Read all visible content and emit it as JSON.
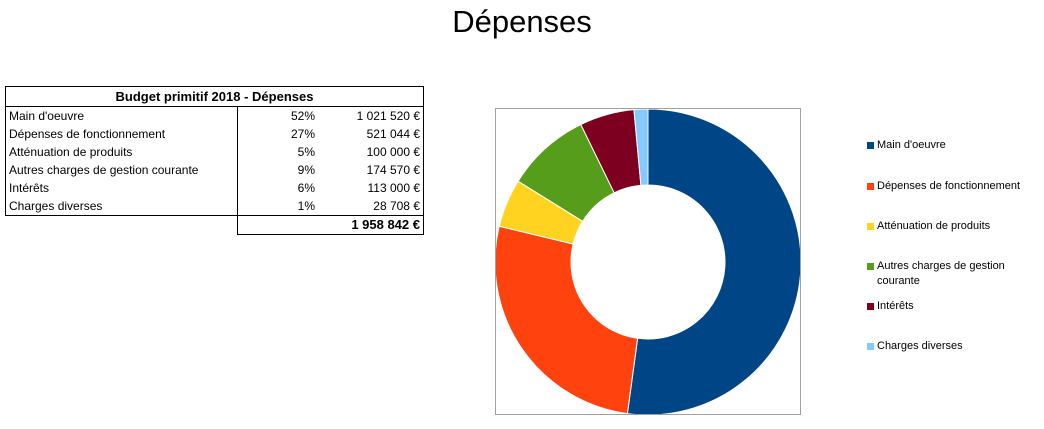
{
  "page": {
    "title": "Dépenses"
  },
  "table": {
    "header": "Budget primitif 2018 - Dépenses",
    "rows": [
      {
        "label": "Main d'oeuvre",
        "pct": "52%",
        "amount": "1 021 520 €"
      },
      {
        "label": "Dépenses de fonctionnement",
        "pct": "27%",
        "amount": "521 044 €"
      },
      {
        "label": "Atténuation de produits",
        "pct": "5%",
        "amount": "100 000 €"
      },
      {
        "label": "Autres charges de gestion courante",
        "pct": "9%",
        "amount": "174 570 €"
      },
      {
        "label": "Intérêts",
        "pct": "6%",
        "amount": "113 000 €"
      },
      {
        "label": "Charges diverses",
        "pct": "1%",
        "amount": "28 708 €"
      }
    ],
    "total": "1 958 842 €"
  },
  "chart_data": {
    "type": "pie",
    "variant": "donut",
    "title": "Dépenses",
    "categories": [
      "Main d'oeuvre",
      "Dépenses de fonctionnement",
      "Atténuation de produits",
      "Autres charges de gestion courante",
      "Intérêts",
      "Charges diverses"
    ],
    "values": [
      1021520,
      521044,
      100000,
      174570,
      113000,
      28708
    ],
    "colors": [
      "#004586",
      "#ff420e",
      "#ffd320",
      "#579d1c",
      "#7e0021",
      "#83caff"
    ],
    "legend": "right",
    "legend_labels": [
      [
        "Main d'oeuvre"
      ],
      [
        "Dépenses de fonctionnement"
      ],
      [
        "Atténuation de produits"
      ],
      [
        "Autres charges de gestion",
        "courante"
      ],
      [
        "Intérêts"
      ],
      [
        "Charges diverses"
      ]
    ]
  }
}
